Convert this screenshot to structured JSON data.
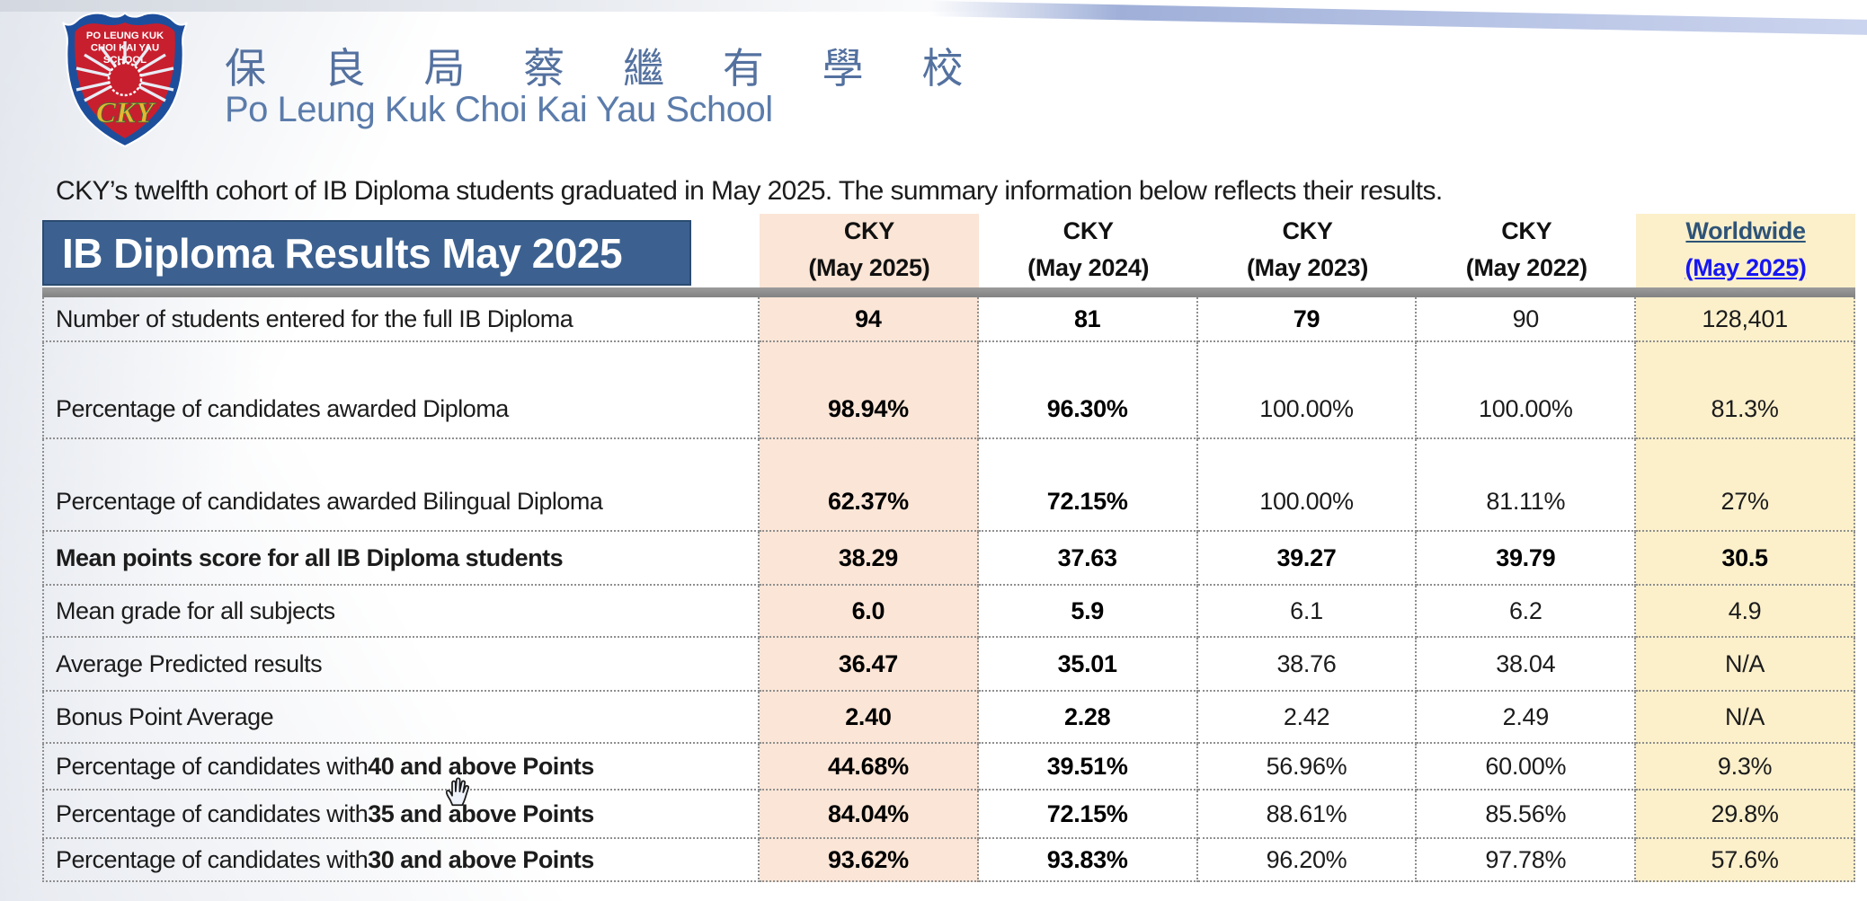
{
  "school": {
    "name_zh": "保 良 局 蔡 繼 有 學 校",
    "name_en": "Po Leung Kuk Choi Kai Yau School",
    "logo": {
      "line1": "PO LEUNG KUK",
      "line2": "CHOI KAI YAU",
      "line3": "SCHOOL",
      "monogram": "CKY"
    }
  },
  "intro_text": "CKY’s twelfth cohort of IB Diploma students graduated in May 2025. The summary information below reflects their results.",
  "table": {
    "title": "IB Diploma Results May 2025",
    "columns": [
      {
        "id": "cky-may-2025",
        "line1": "CKY",
        "line2": "(May 2025)",
        "highlight": "peach",
        "link": false
      },
      {
        "id": "cky-may-2024",
        "line1": "CKY",
        "line2": "(May 2024)",
        "highlight": "none",
        "link": false
      },
      {
        "id": "cky-may-2023",
        "line1": "CKY",
        "line2": "(May 2023)",
        "highlight": "none",
        "link": false
      },
      {
        "id": "cky-may-2022",
        "line1": "CKY",
        "line2": "(May 2022)",
        "highlight": "none",
        "link": false
      },
      {
        "id": "worldwide-may-2025",
        "line1": "Worldwide",
        "line2": "(May 2025)",
        "highlight": "yellow",
        "link": true
      }
    ],
    "rows": [
      {
        "label": "Number of students entered for the full IB Diploma",
        "label_bold_part": "",
        "label_all_bold": false,
        "values": [
          "94",
          "81",
          "79",
          "90",
          "128,401"
        ],
        "bold": [
          true,
          true,
          true,
          false,
          false
        ]
      },
      {
        "label": "Percentage of candidates awarded Diploma",
        "label_bold_part": "",
        "label_all_bold": false,
        "values": [
          "98.94%",
          "96.30%",
          "100.00%",
          "100.00%",
          "81.3%"
        ],
        "bold": [
          true,
          true,
          false,
          false,
          false
        ]
      },
      {
        "label": "Percentage of candidates awarded Bilingual Diploma",
        "label_bold_part": "",
        "label_all_bold": false,
        "values": [
          "62.37%",
          "72.15%",
          "100.00%",
          "81.11%",
          "27%"
        ],
        "bold": [
          true,
          true,
          false,
          false,
          false
        ]
      },
      {
        "label": "Mean points score for all IB Diploma students",
        "label_bold_part": "",
        "label_all_bold": true,
        "values": [
          "38.29",
          "37.63",
          "39.27",
          "39.79",
          "30.5"
        ],
        "bold": [
          true,
          true,
          true,
          true,
          true
        ]
      },
      {
        "label": "Mean grade for all subjects",
        "label_bold_part": "",
        "label_all_bold": false,
        "values": [
          "6.0",
          "5.9",
          "6.1",
          "6.2",
          "4.9"
        ],
        "bold": [
          true,
          true,
          false,
          false,
          false
        ]
      },
      {
        "label": "Average Predicted results",
        "label_bold_part": "",
        "label_all_bold": false,
        "values": [
          "36.47",
          "35.01",
          "38.76",
          "38.04",
          "N/A"
        ],
        "bold": [
          true,
          true,
          false,
          false,
          false
        ]
      },
      {
        "label": "Bonus Point Average",
        "label_bold_part": "",
        "label_all_bold": false,
        "values": [
          "2.40",
          "2.28",
          "2.42",
          "2.49",
          "N/A"
        ],
        "bold": [
          true,
          true,
          false,
          false,
          false
        ]
      },
      {
        "label": "Percentage of candidates with ",
        "label_bold_part": "40 and above Points",
        "label_all_bold": false,
        "values": [
          "44.68%",
          "39.51%",
          "56.96%",
          "60.00%",
          "9.3%"
        ],
        "bold": [
          true,
          true,
          false,
          false,
          false
        ]
      },
      {
        "label": "Percentage of candidates with ",
        "label_bold_part": "35 and above Points",
        "label_all_bold": false,
        "values": [
          "84.04%",
          "72.15%",
          "88.61%",
          "85.56%",
          "29.8%"
        ],
        "bold": [
          true,
          true,
          false,
          false,
          false
        ]
      },
      {
        "label": "Percentage of candidates with ",
        "label_bold_part": "30 and above Points",
        "label_all_bold": false,
        "values": [
          "93.62%",
          "93.83%",
          "96.20%",
          "97.78%",
          "57.6%"
        ],
        "bold": [
          true,
          true,
          false,
          false,
          false
        ]
      }
    ]
  },
  "cursor": {
    "type": "open-hand"
  },
  "colors": {
    "title_bar_bg": "#3c6190",
    "peach_highlight": "#fbe5d6",
    "yellow_highlight": "#fcf0cb",
    "worldwide_text": "#2e5377",
    "link_blue": "#1616f2",
    "school_name_blue": "#54719f",
    "gray_bar": "#8a8a8a"
  }
}
